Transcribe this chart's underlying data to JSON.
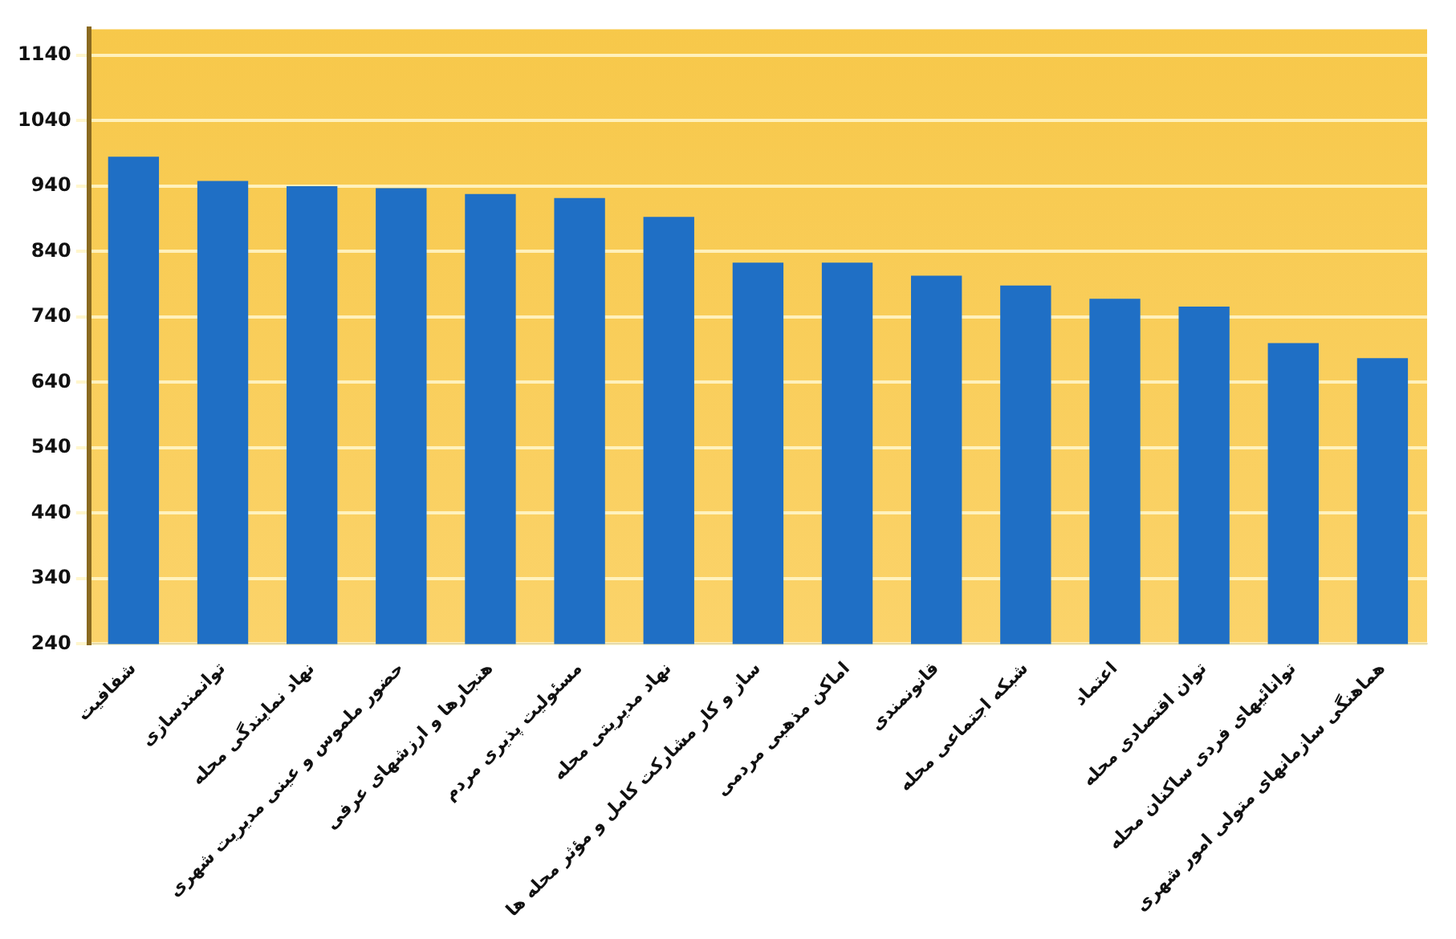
{
  "chart_data": {
    "type": "bar",
    "categories": [
      "شفافیت",
      "توانمندسازی",
      "نهاد نمایندگی محله",
      "حضور ملموس و عینی مدیریت شهری",
      "هنجارها و ارزشهای عرفی",
      "مسئولیت پذیری مردم",
      "نهاد مدیریتی محله",
      "ساز و کار مشارکت کامل و مؤثر محله ها",
      "اماکن مذهبی مردمی",
      "قانونمندی",
      "شبکه اجتماعی محله",
      "اعتماد",
      "توان اقتصادی محله",
      "توانائیهای فردی ساکنان محله",
      "هماهنگی سازمانهای متولی امور شهری"
    ],
    "values": [
      985,
      948,
      940,
      937,
      928,
      922,
      893,
      823,
      823,
      803,
      788,
      768,
      756,
      700,
      677
    ],
    "color": "#1f6fc5",
    "ylim": [
      240,
      1180
    ],
    "yticks": [
      240,
      340,
      440,
      540,
      640,
      740,
      840,
      940,
      1040,
      1140
    ],
    "grid": "y"
  }
}
